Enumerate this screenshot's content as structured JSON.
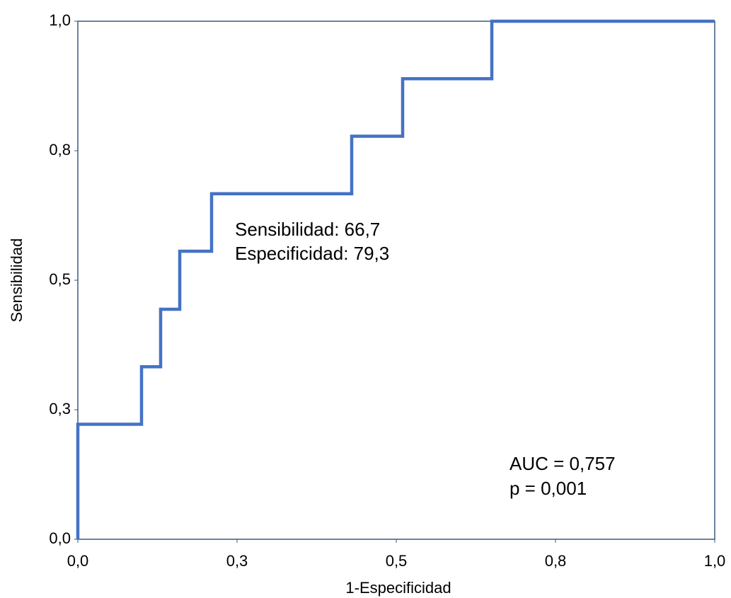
{
  "chart_data": {
    "type": "line",
    "x_label": "1-Especificidad",
    "y_label": "Sensibilidad",
    "series": [
      {
        "color": "#4472c4",
        "x": [
          0,
          0,
          0.1,
          0.1,
          0.13,
          0.13,
          0.16,
          0.16,
          0.21,
          0.21,
          0.43,
          0.43,
          0.51,
          0.51,
          0.65,
          0.65,
          1
        ],
        "values": [
          0,
          0.222,
          0.222,
          0.333,
          0.333,
          0.444,
          0.444,
          0.556,
          0.556,
          0.667,
          0.667,
          0.778,
          0.778,
          0.889,
          0.889,
          1,
          1
        ]
      }
    ],
    "xlim": [
      0,
      1
    ],
    "ylim": [
      0,
      1
    ],
    "xticks": [
      {
        "value": 0,
        "label": "0,0"
      },
      {
        "value": 0.25,
        "label": "0,3"
      },
      {
        "value": 0.5,
        "label": "0,5"
      },
      {
        "value": 0.75,
        "label": "0,8"
      },
      {
        "value": 1,
        "label": "1,0"
      }
    ],
    "yticks": [
      {
        "value": 0,
        "label": "0,0"
      },
      {
        "value": 0.25,
        "label": "0,3"
      },
      {
        "value": 0.5,
        "label": "0,5"
      },
      {
        "value": 0.75,
        "label": "0,8"
      },
      {
        "value": 1,
        "label": "1,0"
      }
    ],
    "annotations": [
      "Sensibilidad: 66,7",
      "Especificidad: 79,3",
      "AUC = 0,757",
      "p = 0,001"
    ]
  }
}
